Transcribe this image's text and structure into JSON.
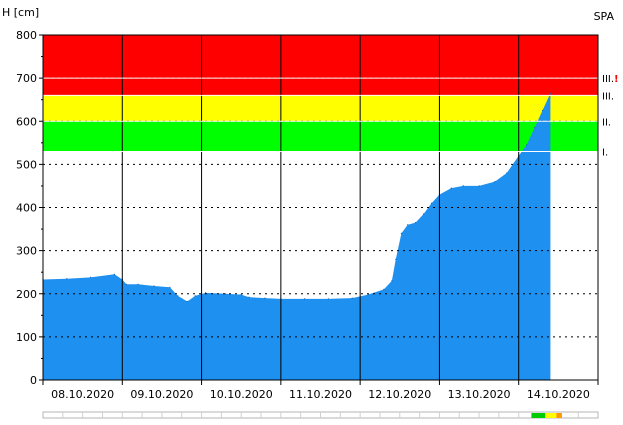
{
  "chart_data": {
    "type": "area",
    "ylabel": "H [cm]",
    "station_code": "SPA",
    "ylim": [
      0,
      800
    ],
    "y_ticks": [
      "0",
      "100",
      "200",
      "300",
      "400",
      "500",
      "600",
      "700",
      "800"
    ],
    "x_labels": [
      "08.10.2020",
      "09.10.2020",
      "10.10.2020",
      "11.10.2020",
      "12.10.2020",
      "13.10.2020",
      "14.10.2020"
    ],
    "x_range_days": [
      0,
      7
    ],
    "bands": [
      {
        "from": 530,
        "to": 600,
        "color": "#00ff00"
      },
      {
        "from": 600,
        "to": 660,
        "color": "#ffff00"
      },
      {
        "from": 660,
        "to": 800,
        "color": "#ff0000"
      }
    ],
    "levels": [
      {
        "label": "I.",
        "value": 530
      },
      {
        "label": "II.",
        "value": 600
      },
      {
        "label": "III.",
        "value": 660
      },
      {
        "label": "III.",
        "value": 700,
        "flag": "!"
      }
    ],
    "series": [
      {
        "color": "#1e90f0",
        "x": [
          0.0,
          0.3,
          0.6,
          0.9,
          1.0,
          1.05,
          1.2,
          1.4,
          1.6,
          1.7,
          1.82,
          1.92,
          2.05,
          2.3,
          2.5,
          2.6,
          2.8,
          3.0,
          3.3,
          3.6,
          3.9,
          4.1,
          4.3,
          4.4,
          4.45,
          4.52,
          4.6,
          4.7,
          4.8,
          4.9,
          5.0,
          5.15,
          5.3,
          5.5,
          5.7,
          5.85,
          6.0,
          6.1,
          6.2,
          6.3,
          6.4
        ],
        "y": [
          233,
          235,
          238,
          245,
          233,
          222,
          222,
          218,
          215,
          195,
          182,
          195,
          202,
          200,
          198,
          192,
          190,
          188,
          188,
          188,
          190,
          198,
          210,
          230,
          280,
          340,
          360,
          365,
          385,
          410,
          430,
          445,
          450,
          450,
          460,
          480,
          520,
          545,
          585,
          625,
          665
        ]
      }
    ],
    "legend_strip": {
      "segments": [
        {
          "from": 0.88,
          "to": 0.905,
          "color": "#00cc00"
        },
        {
          "from": 0.905,
          "to": 0.925,
          "color": "#ffff00"
        },
        {
          "from": 0.925,
          "to": 0.935,
          "color": "#ff9900"
        }
      ]
    }
  }
}
